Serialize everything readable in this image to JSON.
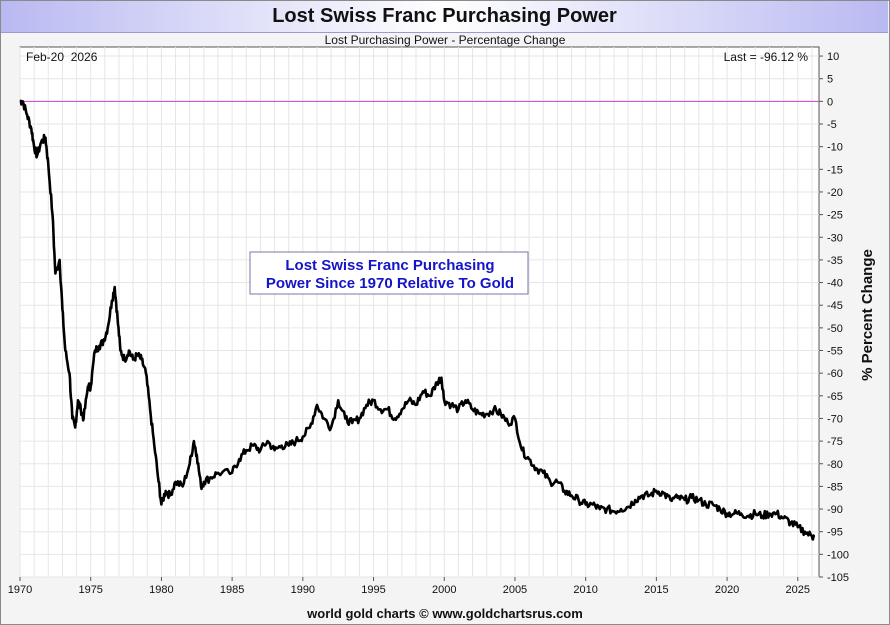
{
  "header": {
    "title": "Lost Swiss Franc Purchasing Power",
    "subtitle": "Lost Purchasing Power - Percentage Change"
  },
  "footer": {
    "credit": "world gold charts © www.goldchartsrus.com"
  },
  "chart_data": {
    "type": "line",
    "date_label": "Feb-20  2026",
    "last_label": "Last = -96.12 %",
    "ylabel": "% Percent Change",
    "annotation": [
      "Lost Swiss Franc Purchasing",
      "Power Since 1970 Relative To Gold"
    ],
    "xlim": [
      1970,
      2026.5
    ],
    "ylim": [
      -105,
      12
    ],
    "x_ticks": [
      1970,
      1975,
      1980,
      1985,
      1990,
      1995,
      2000,
      2005,
      2010,
      2015,
      2020,
      2025
    ],
    "y_ticks": [
      10,
      5,
      0,
      -5,
      -10,
      -15,
      -20,
      -25,
      -30,
      -35,
      -40,
      -45,
      -50,
      -55,
      -60,
      -65,
      -70,
      -75,
      -80,
      -85,
      -90,
      -95,
      -100,
      -105
    ],
    "reference_line": {
      "y": 0,
      "color": "#cc44cc"
    },
    "grid": true,
    "line_color": "#000000",
    "series": [
      {
        "x": [
          1970.0,
          1970.2,
          1970.5,
          1970.8,
          1971.0,
          1971.2,
          1971.5,
          1971.8,
          1972.0,
          1972.3,
          1972.5,
          1972.8,
          1973.0,
          1973.2,
          1973.5,
          1973.7,
          1973.9,
          1974.1,
          1974.3,
          1974.5,
          1974.8,
          1975.0,
          1975.3,
          1975.6,
          1975.9,
          1976.2,
          1976.5,
          1976.7,
          1976.9,
          1977.1,
          1977.4,
          1977.7,
          1978.0,
          1978.3,
          1978.6,
          1978.9,
          1979.2,
          1979.5,
          1979.8,
          1980.0,
          1980.3,
          1980.6,
          1981.0,
          1981.5,
          1982.0,
          1982.3,
          1982.5,
          1982.8,
          1983.0,
          1983.5,
          1984.0,
          1985.0,
          1985.5,
          1986.0,
          1986.5,
          1987.0,
          1987.5,
          1988.0,
          1988.5,
          1989.0,
          1989.5,
          1990.0,
          1990.5,
          1991.0,
          1991.5,
          1992.0,
          1992.5,
          1993.0,
          1993.5,
          1994.0,
          1994.5,
          1995.0,
          1995.5,
          1996.0,
          1996.5,
          1997.0,
          1997.5,
          1998.0,
          1998.5,
          1999.0,
          1999.5,
          1999.8,
          2000.0,
          2000.5,
          2001.0,
          2001.5,
          2002.0,
          2002.5,
          2003.0,
          2003.5,
          2004.0,
          2004.5,
          2005.0,
          2005.5,
          2006.0,
          2006.5,
          2007.0,
          2007.5,
          2008.0,
          2008.5,
          2009.0,
          2009.5,
          2010.0,
          2010.5,
          2011.0,
          2011.5,
          2012.0,
          2012.5,
          2013.0,
          2013.5,
          2014.0,
          2014.5,
          2015.0,
          2015.5,
          2016.0,
          2016.5,
          2017.0,
          2017.5,
          2018.0,
          2018.5,
          2019.0,
          2019.5,
          2020.0,
          2020.5,
          2021.0,
          2021.5,
          2022.0,
          2022.5,
          2023.0,
          2023.5,
          2024.0,
          2024.5,
          2025.0,
          2025.5,
          2026.0,
          2026.14
        ],
        "y": [
          0,
          0,
          -3,
          -6,
          -10,
          -12,
          -9,
          -8,
          -14,
          -25,
          -38,
          -35,
          -46,
          -55,
          -60,
          -70,
          -72,
          -66,
          -68,
          -70,
          -63,
          -63,
          -55,
          -54,
          -53,
          -50,
          -44,
          -41,
          -48,
          -55,
          -57,
          -55,
          -57,
          -56,
          -57,
          -60,
          -68,
          -76,
          -84,
          -89,
          -86,
          -87,
          -84,
          -85,
          -80,
          -75,
          -78,
          -85,
          -84,
          -83,
          -82,
          -82,
          -79,
          -77,
          -76,
          -77,
          -75,
          -77,
          -76,
          -76,
          -75,
          -74,
          -72,
          -67,
          -70,
          -72,
          -66,
          -70,
          -71,
          -70,
          -67,
          -66,
          -68,
          -68,
          -70,
          -68,
          -66,
          -67,
          -64,
          -65,
          -62,
          -61,
          -66,
          -67,
          -68,
          -66,
          -68,
          -69,
          -69,
          -68,
          -69,
          -71,
          -70,
          -77,
          -79,
          -81,
          -82,
          -84,
          -84,
          -86,
          -87,
          -88,
          -89,
          -89,
          -90,
          -90,
          -90.5,
          -90,
          -89.5,
          -88,
          -87,
          -87,
          -86,
          -86.5,
          -88,
          -87.5,
          -88,
          -87.5,
          -88,
          -89,
          -89,
          -90,
          -91,
          -91,
          -91,
          -91.5,
          -91,
          -91.5,
          -91,
          -91,
          -92,
          -93,
          -94,
          -95,
          -96,
          -96.12
        ]
      }
    ]
  }
}
